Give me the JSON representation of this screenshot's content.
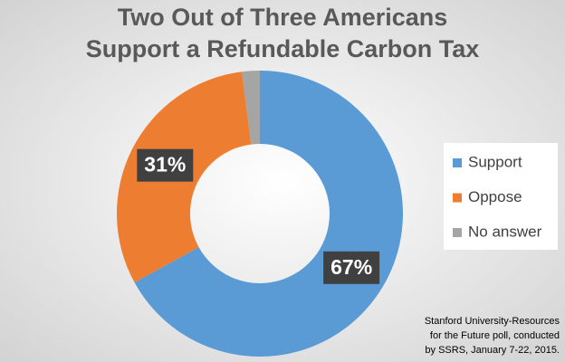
{
  "chart_data": {
    "type": "pie",
    "title": [
      "Two Out of Three Americans",
      "Support a Refundable Carbon Tax"
    ],
    "categories": [
      "Support",
      "Oppose",
      "No answer"
    ],
    "values": [
      67,
      31,
      2
    ],
    "value_labels": [
      "67%",
      "31%",
      null
    ],
    "colors": [
      "#5b9bd5",
      "#ed7d31",
      "#a5a5a5"
    ],
    "donut": true,
    "legend": "right",
    "source": [
      "Stanford University-Resources",
      "for the Future poll, conducted",
      "by SSRS, January 7-22, 2015."
    ]
  }
}
